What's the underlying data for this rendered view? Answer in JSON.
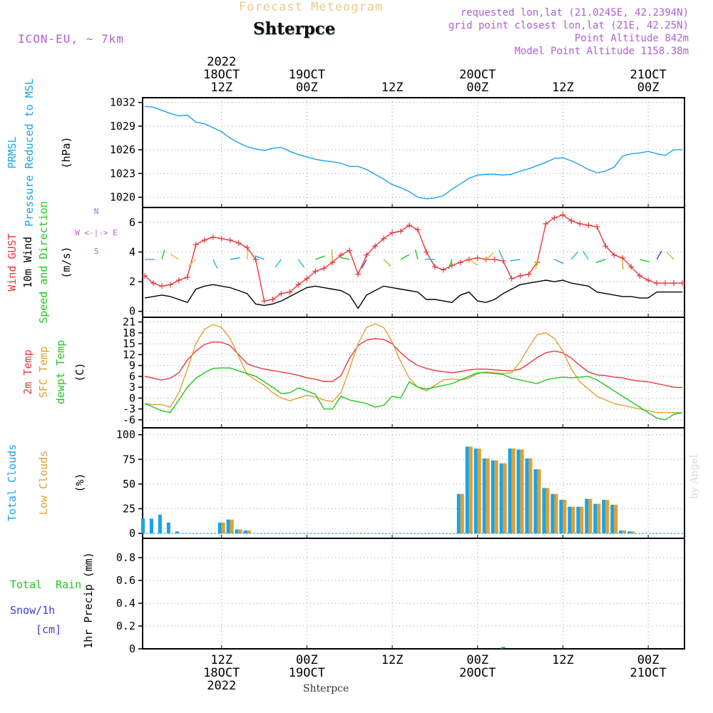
{
  "header": {
    "title": "Forecast Meteogram",
    "location": "Shterpce",
    "model": "ICON-EU, ~ 7km",
    "requested": "requested lon,lat (21.0245E, 42.2394N)",
    "grid_point": "grid point closest lon,lat (21E, 42.25N)",
    "point_altitude": "Point Altitude 842m",
    "model_altitude": "Model Point Altitude 1158.38m",
    "footer_location": "Shterpce",
    "watermark": "by Angel"
  },
  "colors": {
    "pressure": "#1aa3e8",
    "gust": "#e8383b",
    "wind10m": "#000000",
    "temp2m": "#e8383b",
    "sfc_temp": "#e0a030",
    "dewpt": "#1ec81e",
    "total_clouds": "#1aa3e8",
    "low_clouds": "#e0a030",
    "title_accent": "#f0c890",
    "info_text": "#b060d0"
  },
  "chart_data": [
    {
      "type": "line",
      "panel": "pressure",
      "ylabel": [
        "PRMSL",
        "Pressure Reduced to MSL",
        "(hPa)"
      ],
      "yticks": [
        1020,
        1023,
        1026,
        1029,
        1032
      ],
      "ylim": [
        1018.7,
        1032.6
      ],
      "xlim": [
        0,
        63
      ],
      "series": [
        {
          "name": "PRMSL",
          "x": [
            0,
            1,
            2,
            3,
            4,
            5,
            6,
            7,
            8,
            9,
            10,
            11,
            12,
            13,
            14,
            15,
            16,
            17,
            18,
            19,
            20,
            21,
            22,
            23,
            24,
            25,
            26,
            27,
            28,
            29,
            30,
            31,
            32,
            33,
            34,
            35,
            36,
            37,
            38,
            39,
            40,
            41,
            42,
            43,
            44,
            45,
            46,
            47,
            48,
            49,
            50,
            51,
            52,
            53,
            54,
            55,
            56,
            57,
            58,
            59,
            60,
            61,
            62,
            63
          ],
          "values": [
            1031.5,
            1031.4,
            1031.0,
            1030.6,
            1030.3,
            1030.4,
            1029.5,
            1029.3,
            1028.8,
            1028.3,
            1027.5,
            1026.9,
            1026.4,
            1026.1,
            1025.9,
            1026.2,
            1026.3,
            1025.8,
            1025.4,
            1025.1,
            1024.8,
            1024.6,
            1024.5,
            1024.3,
            1023.9,
            1023.9,
            1023.5,
            1022.9,
            1022.3,
            1021.6,
            1021.2,
            1020.7,
            1020.0,
            1019.8,
            1019.9,
            1020.2,
            1021.0,
            1021.7,
            1022.4,
            1022.8,
            1022.9,
            1022.9,
            1022.8,
            1022.9,
            1023.3,
            1023.6,
            1024.0,
            1024.4,
            1024.9,
            1025.0,
            1024.6,
            1024.1,
            1023.5,
            1023.1,
            1023.3,
            1023.8,
            1025.2,
            1025.5,
            1025.6,
            1025.8,
            1025.5,
            1025.3,
            1026.0,
            1026.0
          ]
        }
      ]
    },
    {
      "type": "line",
      "panel": "wind",
      "ylabel": [
        "Wind GUST",
        "10m Wind",
        "Speed and Direction",
        "(m/s)"
      ],
      "compass": [
        "N",
        "W <-|-> E",
        "S"
      ],
      "yticks": [
        0,
        2,
        4,
        6
      ],
      "ylim": [
        -0.4,
        7.0
      ],
      "xlim": [
        0,
        63
      ],
      "series": [
        {
          "name": "Wind GUST",
          "x": [
            0,
            1,
            2,
            3,
            4,
            5,
            6,
            7,
            8,
            9,
            10,
            11,
            12,
            13,
            14,
            15,
            16,
            17,
            18,
            19,
            20,
            21,
            22,
            23,
            24,
            25,
            26,
            27,
            28,
            29,
            30,
            31,
            32,
            33,
            34,
            35,
            36,
            37,
            38,
            39,
            40,
            41,
            42,
            43,
            44,
            45,
            46,
            47,
            48,
            49,
            50,
            51,
            52,
            53,
            54,
            55,
            56,
            57,
            58,
            59,
            60,
            61,
            62,
            63
          ],
          "values": [
            2.4,
            1.9,
            1.7,
            1.8,
            2.1,
            2.3,
            4.5,
            4.8,
            5.0,
            4.9,
            4.8,
            4.6,
            4.3,
            3.5,
            0.7,
            0.8,
            1.2,
            1.3,
            1.8,
            2.2,
            2.7,
            2.9,
            3.3,
            3.8,
            4.1,
            2.5,
            3.8,
            4.4,
            4.9,
            5.3,
            5.4,
            5.8,
            5.5,
            4.0,
            3.0,
            2.8,
            3.1,
            3.3,
            3.5,
            3.6,
            3.5,
            3.5,
            3.4,
            2.2,
            2.4,
            2.5,
            3.3,
            5.9,
            6.3,
            6.5,
            6.1,
            5.9,
            5.8,
            5.7,
            4.4,
            3.8,
            3.6,
            3.0,
            2.4,
            2.1,
            1.9,
            1.9,
            1.9,
            1.9
          ]
        },
        {
          "name": "10m Wind",
          "x": [
            0,
            1,
            2,
            3,
            4,
            5,
            6,
            7,
            8,
            9,
            10,
            11,
            12,
            13,
            14,
            15,
            16,
            17,
            18,
            19,
            20,
            21,
            22,
            23,
            24,
            25,
            26,
            27,
            28,
            29,
            30,
            31,
            32,
            33,
            34,
            35,
            36,
            37,
            38,
            39,
            40,
            41,
            42,
            43,
            44,
            45,
            46,
            47,
            48,
            49,
            50,
            51,
            52,
            53,
            54,
            55,
            56,
            57,
            58,
            59,
            60,
            61,
            62,
            63
          ],
          "values": [
            0.9,
            1.0,
            1.1,
            1.0,
            0.8,
            0.6,
            1.5,
            1.7,
            1.8,
            1.7,
            1.6,
            1.4,
            1.2,
            0.5,
            0.4,
            0.5,
            0.7,
            1.0,
            1.3,
            1.6,
            1.7,
            1.6,
            1.5,
            1.4,
            1.1,
            0.2,
            1.1,
            1.4,
            1.7,
            1.6,
            1.5,
            1.4,
            1.3,
            0.8,
            0.8,
            0.7,
            0.6,
            1.1,
            1.3,
            0.7,
            0.6,
            0.8,
            1.2,
            1.5,
            1.8,
            1.9,
            2.0,
            2.1,
            2.0,
            2.1,
            1.9,
            1.8,
            1.7,
            1.3,
            1.2,
            1.1,
            1.0,
            1.0,
            0.9,
            0.9,
            1.3,
            1.3,
            1.3,
            1.3
          ]
        }
      ]
    },
    {
      "type": "line",
      "panel": "temperature",
      "ylabel": [
        "2m Temp",
        "SFC Temp",
        "dewpt Temp",
        "(C)"
      ],
      "yticks": [
        -6,
        -3,
        0,
        3,
        6,
        9,
        12,
        15,
        18,
        21
      ],
      "ylim": [
        -8.2,
        22.3
      ],
      "xlim": [
        0,
        63
      ],
      "series": [
        {
          "name": "2m Temp",
          "x": [
            0,
            1,
            2,
            3,
            4,
            5,
            6,
            7,
            8,
            9,
            10,
            11,
            12,
            13,
            14,
            15,
            16,
            17,
            18,
            19,
            20,
            21,
            22,
            23,
            24,
            25,
            26,
            27,
            28,
            29,
            30,
            31,
            32,
            33,
            34,
            35,
            36,
            37,
            38,
            39,
            40,
            41,
            42,
            43,
            44,
            45,
            46,
            47,
            48,
            49,
            50,
            51,
            52,
            53,
            54,
            55,
            56,
            57,
            58,
            59,
            60,
            61,
            62,
            63
          ],
          "values": [
            6.0,
            5.5,
            5.0,
            5.5,
            7.0,
            10.5,
            13.0,
            14.8,
            15.5,
            15.4,
            14.5,
            12.0,
            9.5,
            8.6,
            8.0,
            7.6,
            7.2,
            6.8,
            6.3,
            5.6,
            5.2,
            4.6,
            4.6,
            6.2,
            11.0,
            14.5,
            16.0,
            16.4,
            16.2,
            15.0,
            12.5,
            10.5,
            9.0,
            8.2,
            7.6,
            7.3,
            7.0,
            7.3,
            7.8,
            8.0,
            8.0,
            7.8,
            7.6,
            7.5,
            8.0,
            9.5,
            11.2,
            12.5,
            13.0,
            12.5,
            11.0,
            9.0,
            7.2,
            6.4,
            6.2,
            5.8,
            5.6,
            5.0,
            4.7,
            4.5,
            4.0,
            3.5,
            3.0,
            2.9
          ]
        },
        {
          "name": "SFC Temp",
          "x": [
            0,
            1,
            2,
            3,
            4,
            5,
            6,
            7,
            8,
            9,
            10,
            11,
            12,
            13,
            14,
            15,
            16,
            17,
            18,
            19,
            20,
            21,
            22,
            23,
            24,
            25,
            26,
            27,
            28,
            29,
            30,
            31,
            32,
            33,
            34,
            35,
            36,
            37,
            38,
            39,
            40,
            41,
            42,
            43,
            44,
            45,
            46,
            47,
            48,
            49,
            50,
            51,
            52,
            53,
            54,
            55,
            56,
            57,
            58,
            59,
            60,
            61,
            62,
            63
          ],
          "values": [
            -1.5,
            -1.8,
            -1.8,
            -2.5,
            1.5,
            8.0,
            15.0,
            19.0,
            20.3,
            19.5,
            16.5,
            11.5,
            6.5,
            5.0,
            3.5,
            1.5,
            0.0,
            -0.7,
            0.0,
            0.8,
            0.3,
            -0.5,
            -1.0,
            1.5,
            8.0,
            15.0,
            19.5,
            20.5,
            19.5,
            15.5,
            10.0,
            5.5,
            3.0,
            2.0,
            3.5,
            5.0,
            5.3,
            5.0,
            5.5,
            6.8,
            7.2,
            7.0,
            6.8,
            7.0,
            10.0,
            14.0,
            17.5,
            18.0,
            16.5,
            13.0,
            8.0,
            4.5,
            2.5,
            0.5,
            -0.5,
            -1.5,
            -2.0,
            -2.5,
            -3.0,
            -3.5,
            -4.0,
            -4.0,
            -4.0,
            -4.0
          ]
        },
        {
          "name": "dewpt Temp",
          "x": [
            0,
            1,
            2,
            3,
            4,
            5,
            6,
            7,
            8,
            9,
            10,
            11,
            12,
            13,
            14,
            15,
            16,
            17,
            18,
            19,
            20,
            21,
            22,
            23,
            24,
            25,
            26,
            27,
            28,
            29,
            30,
            31,
            32,
            33,
            34,
            35,
            36,
            37,
            38,
            39,
            40,
            41,
            42,
            43,
            44,
            45,
            46,
            47,
            48,
            49,
            50,
            51,
            52,
            53,
            54,
            55,
            56,
            57,
            58,
            59,
            60,
            61,
            62,
            63
          ],
          "values": [
            -1.5,
            -2.5,
            -3.5,
            -4.0,
            -0.5,
            3.0,
            5.5,
            7.0,
            8.2,
            8.3,
            8.3,
            7.5,
            6.8,
            6.0,
            4.5,
            3.0,
            1.2,
            1.5,
            2.8,
            2.0,
            1.0,
            -3.0,
            -3.0,
            0.5,
            -0.5,
            -1.0,
            -1.5,
            -2.5,
            -2.0,
            0.5,
            0.0,
            4.5,
            3.0,
            2.5,
            3.0,
            3.5,
            4.0,
            5.0,
            6.0,
            7.0,
            7.0,
            6.8,
            6.5,
            5.5,
            5.0,
            4.5,
            4.0,
            5.0,
            5.5,
            5.8,
            5.6,
            5.8,
            6.0,
            5.0,
            3.5,
            2.0,
            0.5,
            -1.0,
            -2.5,
            -4.0,
            -5.5,
            -6.0,
            -4.5,
            -4.0
          ]
        }
      ]
    },
    {
      "type": "bar",
      "panel": "clouds",
      "ylabel": [
        "Total Clouds",
        "Low Clouds",
        "(%)"
      ],
      "yticks": [
        0,
        25,
        50,
        75,
        100
      ],
      "ylim": [
        -5,
        107
      ],
      "xlim": [
        0,
        63
      ],
      "x": [
        0,
        1,
        2,
        3,
        4,
        5,
        6,
        7,
        8,
        9,
        10,
        11,
        12,
        13,
        14,
        15,
        16,
        17,
        18,
        19,
        20,
        21,
        22,
        23,
        24,
        25,
        26,
        27,
        28,
        29,
        30,
        31,
        32,
        33,
        34,
        35,
        36,
        37,
        38,
        39,
        40,
        41,
        42,
        43,
        44,
        45,
        46,
        47,
        48,
        49,
        50,
        51,
        52,
        53,
        54,
        55,
        56,
        57,
        58,
        59,
        60,
        61,
        62,
        63
      ],
      "series": [
        {
          "name": "Total Clouds",
          "values": [
            15,
            15,
            19,
            11,
            2,
            0,
            0,
            0,
            0,
            11,
            14,
            4,
            3,
            0,
            0,
            0,
            0,
            0,
            0,
            0,
            0,
            0,
            0,
            0,
            0,
            0,
            0,
            0,
            0,
            0,
            0,
            0,
            0,
            0,
            0,
            0,
            0,
            40,
            88,
            86,
            76,
            74,
            71,
            86,
            85,
            76,
            65,
            46,
            40,
            34,
            27,
            27,
            35,
            30,
            34,
            29,
            3,
            2,
            0,
            0,
            0,
            0,
            0,
            0
          ]
        },
        {
          "name": "Low Clouds",
          "values": [
            0,
            0,
            0,
            0,
            0,
            0,
            0,
            0,
            0,
            11,
            14,
            4,
            3,
            0,
            0,
            0,
            0,
            0,
            0,
            0,
            0,
            0,
            0,
            0,
            0,
            0,
            0,
            0,
            0,
            0,
            0,
            0,
            0,
            0,
            0,
            0,
            0,
            40,
            88,
            86,
            76,
            74,
            71,
            86,
            85,
            76,
            65,
            46,
            40,
            34,
            27,
            27,
            35,
            30,
            34,
            29,
            3,
            2,
            0,
            0,
            0,
            0,
            0,
            0
          ]
        }
      ]
    },
    {
      "type": "bar",
      "panel": "precip",
      "ylabel": [
        "1hr Precip (mm)"
      ],
      "legend": [
        "Total",
        "Rain",
        "Snow/1h",
        "[cm]"
      ],
      "yticks": [
        0,
        0.2,
        0.4,
        0.6,
        0.8
      ],
      "ylim": [
        0,
        0.97
      ],
      "xlim": [
        0,
        63
      ],
      "x": [
        42
      ],
      "series": [
        {
          "name": "Total",
          "values": [
            0.01
          ]
        }
      ]
    }
  ],
  "time_axis": {
    "top_year": "2022",
    "ticks": [
      {
        "x": 9,
        "day": "18OCT",
        "hour": "12Z",
        "year": "2022"
      },
      {
        "x": 19,
        "day": "19OCT",
        "hour": "00Z",
        "year": ""
      },
      {
        "x": 29,
        "day": "",
        "hour": "12Z",
        "year": ""
      },
      {
        "x": 39,
        "day": "20OCT",
        "hour": "00Z",
        "year": ""
      },
      {
        "x": 49,
        "day": "",
        "hour": "12Z",
        "year": ""
      },
      {
        "x": 59,
        "day": "21OCT",
        "hour": "00Z",
        "year": ""
      }
    ]
  }
}
